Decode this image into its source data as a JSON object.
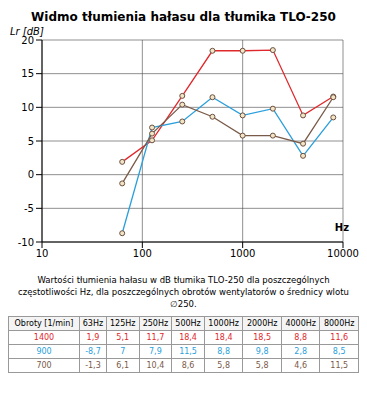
{
  "chart_data": {
    "type": "line",
    "title": "Widmo tłumienia hałasu dla tłumika TLO-250",
    "y_label": "Lr [dB]",
    "x_label": "Hz",
    "x": [
      63,
      125,
      250,
      500,
      1000,
      2000,
      4000,
      8000
    ],
    "series": [
      {
        "name": "1400",
        "color": "#e0282c",
        "values": [
          1.9,
          5.1,
          11.7,
          18.4,
          18.4,
          18.5,
          8.8,
          11.6
        ]
      },
      {
        "name": "900",
        "color": "#2a9fdc",
        "values": [
          -8.7,
          7,
          7.9,
          11.5,
          8.8,
          9.8,
          2.8,
          8.5
        ]
      },
      {
        "name": "700",
        "color": "#7a5a48",
        "values": [
          -1.3,
          6.1,
          10.4,
          8.6,
          5.8,
          5.8,
          4.6,
          11.5
        ]
      }
    ],
    "xlim": [
      10,
      10000
    ],
    "xticks": [
      10,
      100,
      1000,
      10000
    ],
    "ylim": [
      -10,
      20
    ],
    "yticks": [
      -10,
      -5,
      0,
      5,
      10,
      15,
      20
    ],
    "log": "x",
    "grid": true,
    "marker": "circle"
  },
  "table": {
    "caption": "Wartości tłumienia hałasu w dB tłumika TLO-250 dla poszczególnych częstotliwości Hz, dla poszczególnych obrotów wentylatorów o średnicy wlotu ∅250.",
    "header": [
      "Obroty [1/min]",
      "63Hz",
      "125Hz",
      "250Hz",
      "500Hz",
      "1000Hz",
      "2000Hz",
      "4000Hz",
      "8000Hz"
    ],
    "rows": [
      [
        "1400",
        "1,9",
        "5,1",
        "11,7",
        "18,4",
        "18,4",
        "18,5",
        "8,8",
        "11,6"
      ],
      [
        "900",
        "-8,7",
        "7",
        "7,9",
        "11,5",
        "8,8",
        "9,8",
        "2,8",
        "8,5"
      ],
      [
        "700",
        "-1,3",
        "6,1",
        "10,4",
        "8,6",
        "5,8",
        "5,8",
        "4,6",
        "11,5"
      ]
    ]
  }
}
